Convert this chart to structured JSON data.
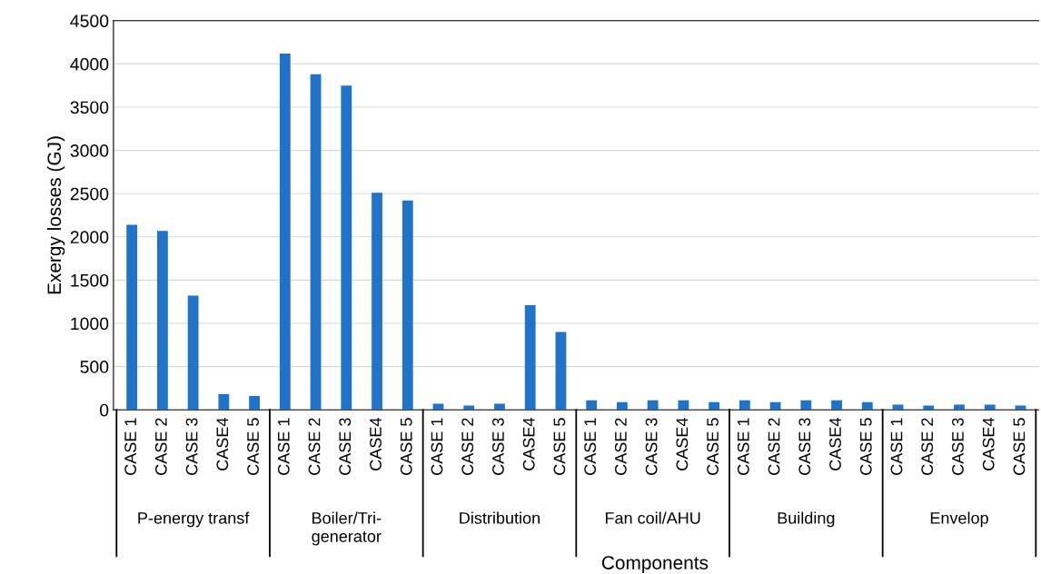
{
  "chart_data": {
    "type": "bar",
    "xlabel": "Components",
    "ylabel": "Exergy losses (GJ)",
    "categories": [
      "CASE 1",
      "CASE 2",
      "CASE 3",
      "CASE4",
      "CASE 5",
      "CASE 1",
      "CASE 2",
      "CASE 3",
      "CASE4",
      "CASE 5",
      "CASE 1",
      "CASE 2",
      "CASE 3",
      "CASE4",
      "CASE 5",
      "CASE 1",
      "CASE 2",
      "CASE 3",
      "CASE4",
      "CASE 5",
      "CASE 1",
      "CASE 2",
      "CASE 3",
      "CASE4",
      "CASE 5",
      "CASE 1",
      "CASE 2",
      "CASE 3",
      "CASE4",
      "CASE 5"
    ],
    "values": [
      2140,
      2070,
      1320,
      180,
      160,
      4120,
      3880,
      3750,
      2510,
      2420,
      70,
      50,
      70,
      1210,
      900,
      110,
      90,
      110,
      110,
      90,
      110,
      90,
      110,
      110,
      90,
      60,
      50,
      60,
      60,
      50
    ],
    "color": "#1f73c9",
    "annotations": [
      "P-energy transf",
      "Boiler/Tri-\ngenerator",
      "Distribution",
      "Fan coil/AHU",
      "Building",
      "Envelop"
    ],
    "ylim": [
      0,
      4500
    ],
    "yticks": [
      0,
      500,
      1000,
      1500,
      2000,
      2500,
      3000,
      3500,
      4000,
      4500
    ],
    "grid": "y"
  }
}
